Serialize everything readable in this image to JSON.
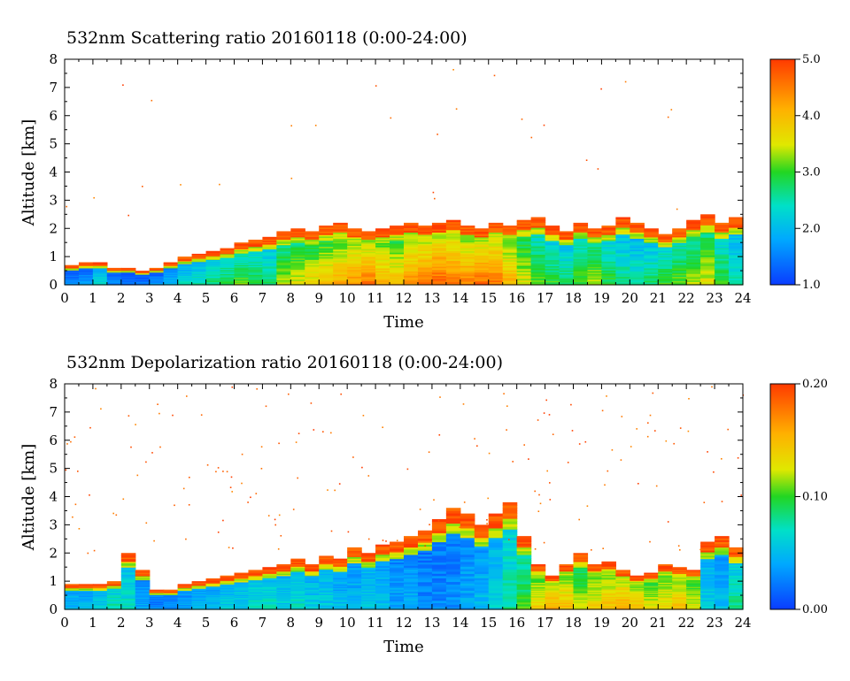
{
  "chart_data": [
    {
      "type": "heatmap",
      "title": "532nm Scattering ratio  20160118 (0:00-24:00)",
      "xlabel": "Time",
      "ylabel": "Altitude [km]",
      "xlim": [
        0,
        24
      ],
      "ylim": [
        0,
        8
      ],
      "x_ticks": [
        "0",
        "1",
        "2",
        "3",
        "4",
        "5",
        "6",
        "7",
        "8",
        "9",
        "10",
        "11",
        "12",
        "13",
        "14",
        "15",
        "16",
        "17",
        "18",
        "19",
        "20",
        "21",
        "22",
        "23",
        "24"
      ],
      "y_ticks": [
        "0",
        "1",
        "2",
        "3",
        "4",
        "5",
        "6",
        "7",
        "8"
      ],
      "colorbar": {
        "min": 1.0,
        "max": 5.0,
        "labels": [
          "1.0",
          "2.0",
          "3.0",
          "4.0",
          "5.0"
        ]
      },
      "layer_top_km": [
        0.7,
        0.8,
        0.8,
        0.6,
        0.6,
        0.5,
        0.6,
        0.8,
        1.0,
        1.1,
        1.2,
        1.3,
        1.5,
        1.6,
        1.7,
        1.9,
        2.0,
        1.9,
        2.1,
        2.2,
        2.0,
        1.9,
        2.0,
        2.1,
        2.2,
        2.1,
        2.2,
        2.3,
        2.1,
        2.0,
        2.2,
        2.1,
        2.3,
        2.4,
        2.1,
        1.9,
        2.2,
        2.0,
        2.1,
        2.4,
        2.2,
        2.0,
        1.8,
        2.0,
        2.3,
        2.5,
        2.2,
        2.4
      ],
      "core_value": [
        1.6,
        1.8,
        2.4,
        1.7,
        1.5,
        1.5,
        1.7,
        2.0,
        2.4,
        2.6,
        2.8,
        3.0,
        3.2,
        3.0,
        2.8,
        3.4,
        3.6,
        3.8,
        4.0,
        4.2,
        4.4,
        4.6,
        4.2,
        4.0,
        4.4,
        4.6,
        4.8,
        4.6,
        4.5,
        4.7,
        4.6,
        4.2,
        3.6,
        3.2,
        3.0,
        2.8,
        3.1,
        3.4,
        3.0,
        2.7,
        2.6,
        2.8,
        3.0,
        3.2,
        3.4,
        3.6,
        3.0,
        2.6
      ],
      "colors": {
        "low": "#0a3cff",
        "high": "#ff3a00"
      }
    },
    {
      "type": "heatmap",
      "title": "532nm Depolarization ratio  20160118 (0:00-24:00)",
      "xlabel": "Time",
      "ylabel": "Altitude [km]",
      "xlim": [
        0,
        24
      ],
      "ylim": [
        0,
        8
      ],
      "x_ticks": [
        "0",
        "1",
        "2",
        "3",
        "4",
        "5",
        "6",
        "7",
        "8",
        "9",
        "10",
        "11",
        "12",
        "13",
        "14",
        "15",
        "16",
        "17",
        "18",
        "19",
        "20",
        "21",
        "22",
        "23",
        "24"
      ],
      "y_ticks": [
        "0",
        "1",
        "2",
        "3",
        "4",
        "5",
        "6",
        "7",
        "8"
      ],
      "colorbar": {
        "min": 0.0,
        "max": 0.2,
        "labels": [
          "0.00",
          "0.10",
          "0.20"
        ]
      },
      "layer_top_km": [
        0.9,
        0.9,
        0.9,
        1.0,
        2.0,
        1.4,
        0.7,
        0.7,
        0.9,
        1.0,
        1.1,
        1.2,
        1.3,
        1.4,
        1.5,
        1.6,
        1.8,
        1.6,
        1.9,
        1.8,
        2.2,
        2.0,
        2.3,
        2.4,
        2.6,
        2.8,
        3.2,
        3.6,
        3.4,
        3.0,
        3.4,
        3.8,
        2.6,
        1.6,
        1.2,
        1.6,
        2.0,
        1.6,
        1.7,
        1.4,
        1.2,
        1.3,
        1.6,
        1.5,
        1.4,
        2.4,
        2.6,
        2.2
      ],
      "core_value": [
        0.05,
        0.05,
        0.06,
        0.08,
        0.07,
        0.04,
        0.03,
        0.03,
        0.04,
        0.05,
        0.05,
        0.06,
        0.06,
        0.07,
        0.07,
        0.06,
        0.07,
        0.06,
        0.06,
        0.05,
        0.05,
        0.06,
        0.05,
        0.04,
        0.04,
        0.03,
        0.03,
        0.03,
        0.04,
        0.05,
        0.06,
        0.08,
        0.1,
        0.14,
        0.16,
        0.15,
        0.12,
        0.14,
        0.15,
        0.16,
        0.15,
        0.13,
        0.14,
        0.15,
        0.13,
        0.06,
        0.05,
        0.08
      ],
      "colors": {
        "low": "#0a3cff",
        "high": "#ff3a00"
      }
    }
  ]
}
